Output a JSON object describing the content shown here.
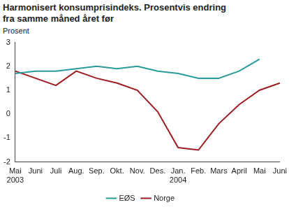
{
  "chart_data": {
    "type": "line",
    "title": "Harmonisert konsumprisindeks. Prosentvis endring fra samme måned året før",
    "y_label": "Prosent",
    "categories": [
      [
        "Mai",
        "2003"
      ],
      "Juni",
      "Juli",
      "Aug.",
      "Sep.",
      "Okt.",
      "Nov.",
      "Des.",
      [
        "Jan.",
        "2004"
      ],
      "Feb.",
      "Mars",
      "April",
      "Mai",
      "Juni"
    ],
    "series": [
      {
        "name": "EØS",
        "color": "#2b9a9a",
        "values": [
          1.7,
          1.8,
          1.8,
          1.9,
          2.0,
          1.9,
          2.0,
          1.8,
          1.7,
          1.5,
          1.5,
          1.8,
          2.3,
          null
        ]
      },
      {
        "name": "Norge",
        "color": "#9b1c22",
        "values": [
          1.8,
          1.5,
          1.2,
          1.8,
          1.5,
          1.3,
          1.0,
          0.1,
          -1.4,
          -1.5,
          -0.4,
          0.4,
          1.0,
          1.3
        ]
      }
    ],
    "ylim": [
      -2,
      3
    ],
    "yticks": [
      -2,
      -1,
      0,
      1,
      2,
      3
    ],
    "grid": false,
    "legend": "bottom"
  }
}
